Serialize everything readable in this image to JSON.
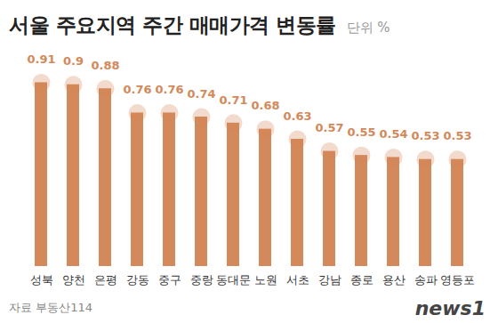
{
  "chart_data": {
    "type": "bar",
    "title": "서울 주요지역 주간 매매가격 변동률",
    "unit_label": "단위 %",
    "categories": [
      "성북",
      "양천",
      "은평",
      "강동",
      "중구",
      "중랑",
      "동대문",
      "노원",
      "서초",
      "강남",
      "종로",
      "용산",
      "송파",
      "영등포"
    ],
    "values": [
      0.91,
      0.9,
      0.88,
      0.76,
      0.76,
      0.74,
      0.71,
      0.68,
      0.63,
      0.57,
      0.55,
      0.54,
      0.53,
      0.53
    ],
    "color": "#d4895a",
    "ylim": [
      0,
      1
    ],
    "data_labels": true,
    "tick_labels": "x",
    "grid": false,
    "source": "자료 부동산114",
    "credit": "news1"
  }
}
